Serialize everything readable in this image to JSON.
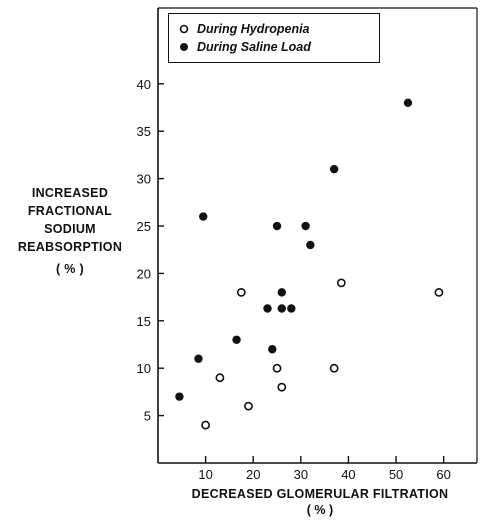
{
  "chart_data": {
    "type": "scatter",
    "title": "",
    "ylabel_lines": [
      "INCREASED",
      "FRACTIONAL",
      "SODIUM",
      "REABSORPTION",
      "( % )"
    ],
    "xlabel": "DECREASED GLOMERULAR FILTRATION",
    "xunit": "( % )",
    "xlim": [
      0,
      67
    ],
    "ylim": [
      0,
      48
    ],
    "xticks": [
      10,
      20,
      30,
      40,
      50,
      60
    ],
    "yticks": [
      5,
      10,
      15,
      20,
      25,
      30,
      35,
      40
    ],
    "grid": false,
    "legend_position": "top-left",
    "series": [
      {
        "name": "During Hydropenia",
        "marker": "open-circle",
        "points": [
          [
            10,
            4
          ],
          [
            13,
            9
          ],
          [
            17.5,
            18
          ],
          [
            19,
            6
          ],
          [
            25,
            10
          ],
          [
            26,
            8
          ],
          [
            37,
            10
          ],
          [
            38.5,
            19
          ],
          [
            59,
            18
          ]
        ]
      },
      {
        "name": "During Saline Load",
        "marker": "filled-circle",
        "points": [
          [
            4.5,
            7
          ],
          [
            8.5,
            11
          ],
          [
            9.5,
            26
          ],
          [
            16.5,
            13
          ],
          [
            23,
            16.3
          ],
          [
            24,
            12
          ],
          [
            25,
            25
          ],
          [
            26,
            16.3
          ],
          [
            26,
            18
          ],
          [
            28,
            16.3
          ],
          [
            31,
            25
          ],
          [
            32,
            23
          ],
          [
            37,
            31
          ],
          [
            52.5,
            38
          ]
        ]
      }
    ]
  }
}
